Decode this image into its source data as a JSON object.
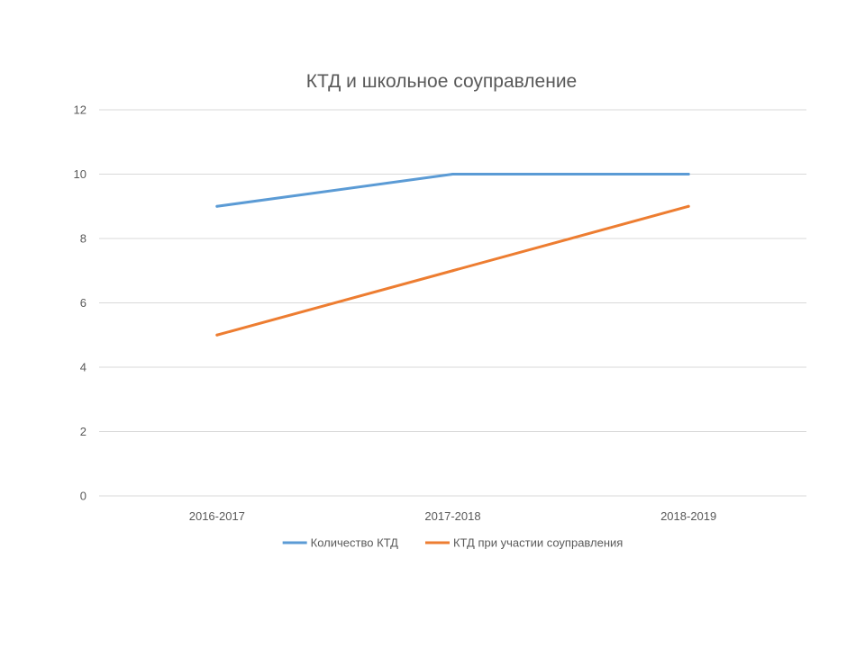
{
  "chart_data": {
    "type": "line",
    "title": "КТД и школьное соуправление",
    "xlabel": "",
    "ylabel": "",
    "categories": [
      "2016-2017",
      "2017-2018",
      "2018-2019"
    ],
    "ylim": [
      0,
      12
    ],
    "yticks": [
      0,
      2,
      4,
      6,
      8,
      10,
      12
    ],
    "grid": true,
    "legend_position": "bottom",
    "series": [
      {
        "name": "Количество КТД",
        "values": [
          9,
          10,
          10
        ],
        "color": "#5b9bd5"
      },
      {
        "name": "КТД при участии соуправления",
        "values": [
          5,
          7,
          9
        ],
        "color": "#ed7d31"
      }
    ]
  }
}
